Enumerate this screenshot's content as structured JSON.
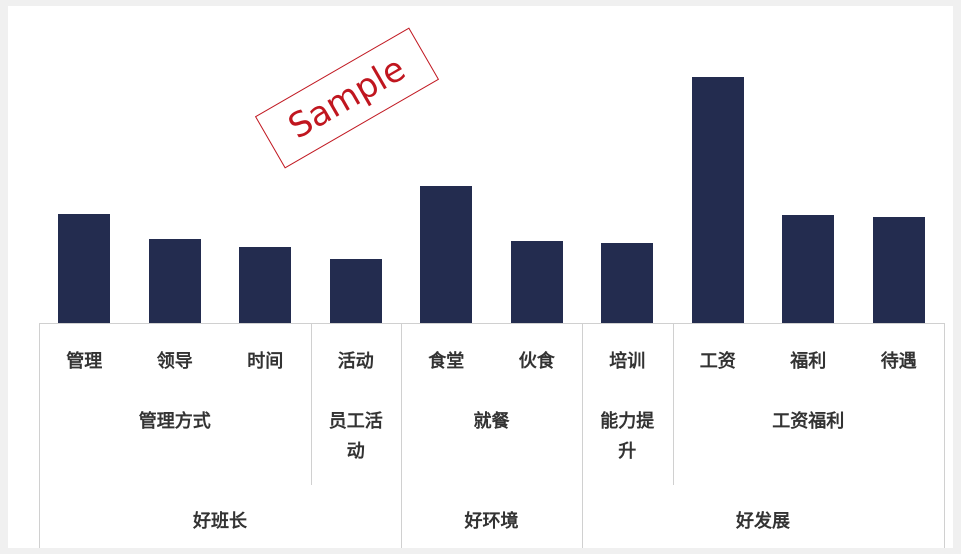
{
  "chart_data": {
    "type": "bar",
    "color": "#232c4f",
    "annotation": "Sample",
    "groups": [
      {
        "name": "好班长",
        "subgroups": [
          {
            "name": "管理方式",
            "categories": [
              "管理",
              "领导",
              "时间"
            ],
            "values": [
              109,
              84,
              76
            ]
          },
          {
            "name": "员工活动",
            "categories": [
              "活动"
            ],
            "values": [
              64
            ]
          }
        ]
      },
      {
        "name": "好环境",
        "subgroups": [
          {
            "name": "就餐",
            "categories": [
              "食堂",
              "伙食"
            ],
            "values": [
              137,
              82
            ]
          }
        ]
      },
      {
        "name": "好发展",
        "subgroups": [
          {
            "name": "能力提升",
            "categories": [
              "培训"
            ],
            "values": [
              80
            ]
          },
          {
            "name": "工资福利",
            "categories": [
              "工资",
              "福利",
              "待遇"
            ],
            "values": [
              246,
              108,
              106
            ]
          }
        ]
      }
    ]
  }
}
